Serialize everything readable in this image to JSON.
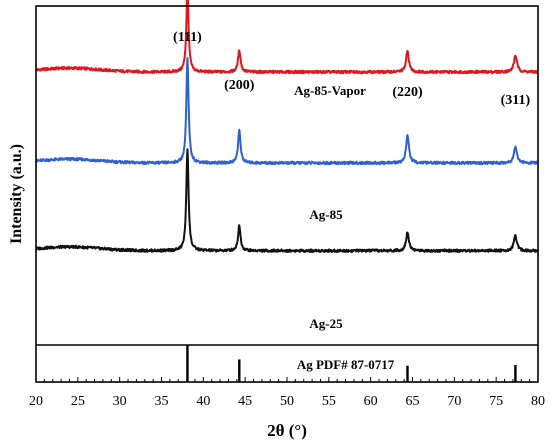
{
  "chart_data": {
    "type": "line",
    "xlabel": "2θ (°)",
    "ylabel": "Intensity (a.u.)",
    "xlim": [
      20,
      80
    ],
    "x_ticks": [
      20,
      25,
      30,
      35,
      40,
      45,
      50,
      55,
      60,
      65,
      70,
      75,
      80
    ],
    "y_ticks": "none",
    "grid": false,
    "series": [
      {
        "name": "Ag-85-Vapor",
        "color": "#e3141b",
        "baseline": 0.84,
        "peaks": [
          {
            "x": 38.1,
            "height": 0.78
          },
          {
            "x": 44.3,
            "height": 0.21
          },
          {
            "x": 64.4,
            "height": 0.2
          },
          {
            "x": 77.3,
            "height": 0.16
          }
        ]
      },
      {
        "name": "Ag-85",
        "color": "#3060d2",
        "baseline": 0.56,
        "peaks": [
          {
            "x": 38.1,
            "height": 1.0
          },
          {
            "x": 44.3,
            "height": 0.31
          },
          {
            "x": 64.4,
            "height": 0.27
          },
          {
            "x": 77.3,
            "height": 0.16
          }
        ]
      },
      {
        "name": "Ag-25",
        "color": "#111111",
        "baseline": 0.29,
        "peaks": [
          {
            "x": 38.1,
            "height": 0.98
          },
          {
            "x": 44.3,
            "height": 0.24
          },
          {
            "x": 64.4,
            "height": 0.18
          },
          {
            "x": 77.3,
            "height": 0.14
          }
        ]
      }
    ],
    "reference": {
      "name": "Ag PDF# 87-0717",
      "lines": [
        {
          "x": 38.1,
          "height": 1.0
        },
        {
          "x": 44.3,
          "height": 0.61
        },
        {
          "x": 64.4,
          "height": 0.44
        },
        {
          "x": 77.3,
          "height": 0.46
        }
      ]
    },
    "peak_labels": [
      {
        "text": "(111)",
        "x": 38.1
      },
      {
        "text": "(200)",
        "x": 44.3
      },
      {
        "text": "(220)",
        "x": 64.4
      },
      {
        "text": "(311)",
        "x": 77.3
      }
    ]
  }
}
